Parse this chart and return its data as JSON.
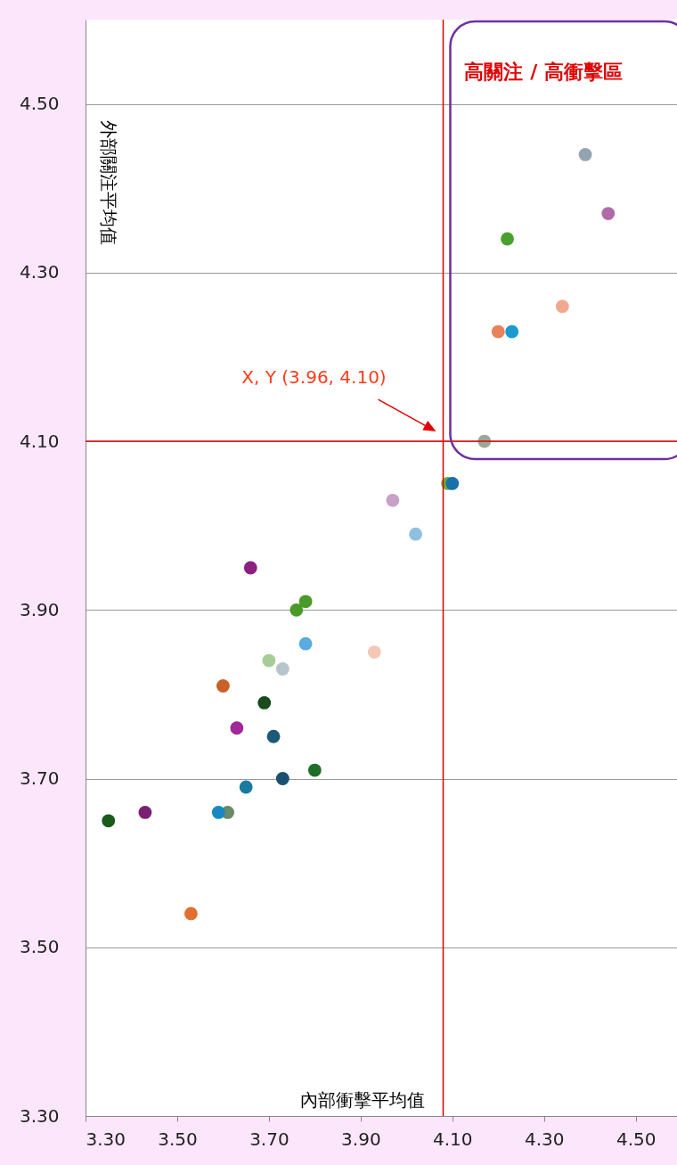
{
  "chart_data": {
    "type": "scatter",
    "xlabel": "內部衝擊平均值",
    "ylabel": "外部關注平均值",
    "xlim": [
      3.3,
      4.59
    ],
    "ylim": [
      3.3,
      4.6
    ],
    "xticks": [
      {
        "value": 3.3,
        "label": "3.30"
      },
      {
        "value": 3.5,
        "label": "3.50"
      },
      {
        "value": 3.7,
        "label": "3.70"
      },
      {
        "value": 3.9,
        "label": "3.90"
      },
      {
        "value": 4.1,
        "label": "4.10"
      },
      {
        "value": 4.3,
        "label": "4.30"
      },
      {
        "value": 4.5,
        "label": "4.50"
      }
    ],
    "yticks": [
      {
        "value": 3.3,
        "label": "3.30"
      },
      {
        "value": 3.5,
        "label": "3.50"
      },
      {
        "value": 3.7,
        "label": "3.70"
      },
      {
        "value": 3.9,
        "label": "3.90"
      },
      {
        "value": 4.1,
        "label": "4.10"
      },
      {
        "value": 4.3,
        "label": "4.30"
      },
      {
        "value": 4.5,
        "label": "4.50"
      }
    ],
    "x": [
      4.39,
      4.44,
      4.22,
      4.34,
      4.2,
      4.23,
      4.17,
      4.1,
      4.09,
      3.97,
      4.02,
      3.66,
      3.78,
      3.76,
      3.78,
      3.7,
      3.93,
      3.73,
      3.6,
      3.69,
      3.63,
      3.71,
      3.8,
      3.73,
      3.65,
      3.59,
      3.61,
      3.43,
      3.35,
      3.53
    ],
    "values": [
      4.44,
      4.37,
      4.34,
      4.26,
      4.23,
      4.23,
      4.1,
      4.05,
      4.05,
      4.03,
      3.99,
      3.95,
      3.91,
      3.9,
      3.86,
      3.84,
      3.85,
      3.83,
      3.81,
      3.79,
      3.76,
      3.75,
      3.71,
      3.7,
      3.69,
      3.66,
      3.66,
      3.66,
      3.65,
      3.54
    ],
    "colors": [
      "#94a3b0",
      "#b06aaa",
      "#4aa02c",
      "#f0a890",
      "#e8825a",
      "#1a9ad0",
      "#9aa898",
      "#1a70a8",
      "#6ab040",
      "#c8a0c8",
      "#90c0e0",
      "#8a2080",
      "#4a9a2a",
      "#4a9a2a",
      "#5aabdf",
      "#a8cc98",
      "#f4c8b8",
      "#b8c4cc",
      "#c86028",
      "#1a4a1a",
      "#a02898",
      "#1a5a78",
      "#1e6e28",
      "#1a5070",
      "#1a7aa0",
      "#1a88c0",
      "#6a8a68",
      "#7a2070",
      "#1a5a1a",
      "#e07030"
    ],
    "marker": "circle",
    "grid": "y",
    "ref_lines": [
      {
        "axis": "x",
        "value": 4.08,
        "color": "#e00000"
      },
      {
        "axis": "y",
        "value": 4.1,
        "color": "#e00000"
      }
    ],
    "annotations": [
      "X, Y (3.96, 4.10)",
      "高關注 / 高衝擊區"
    ]
  }
}
